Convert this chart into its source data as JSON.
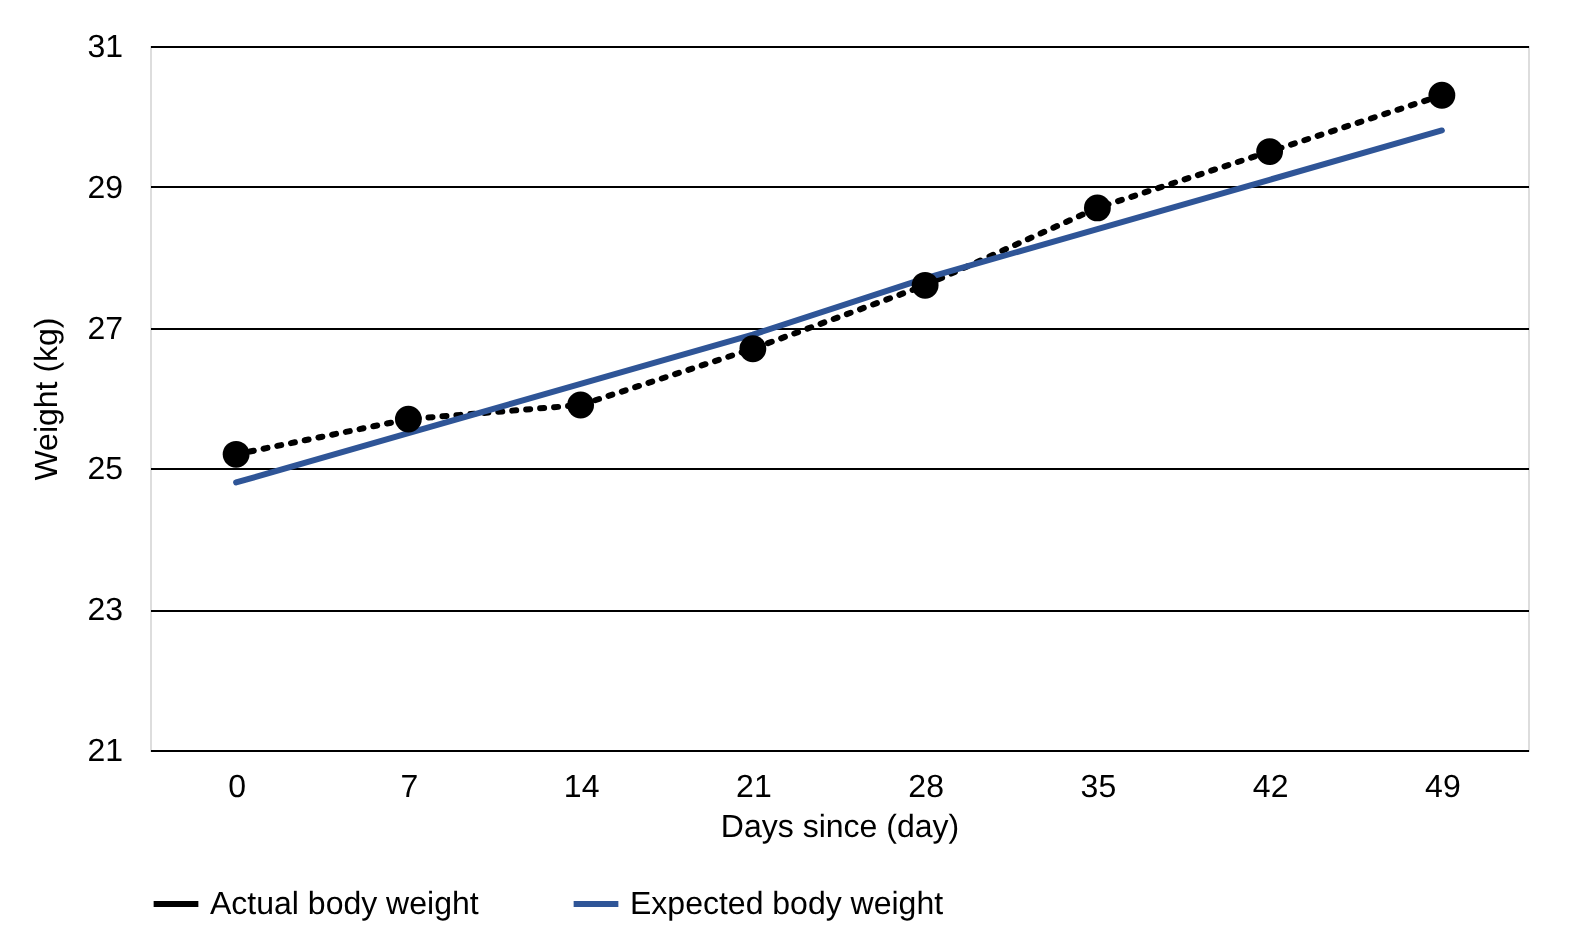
{
  "chart_data": {
    "type": "line",
    "xlabel": "Days since (day)",
    "ylabel": "Weight (kg)",
    "categories": [
      "0",
      "7",
      "14",
      "21",
      "28",
      "35",
      "42",
      "49"
    ],
    "series": [
      {
        "name": "Actual body weight",
        "color": "#000000",
        "marker": "circle",
        "line_style": "dotted",
        "values": [
          25.2,
          25.7,
          25.9,
          26.7,
          27.6,
          28.7,
          29.5,
          30.3
        ]
      },
      {
        "name": "Expected body weight",
        "color": "#2f5597",
        "marker": "none",
        "line_style": "solid",
        "values": [
          24.8,
          25.5,
          26.2,
          26.9,
          27.7,
          28.4,
          29.1,
          29.8
        ]
      }
    ],
    "ylim": [
      21,
      31
    ],
    "yticks": [
      21,
      23,
      25,
      27,
      29,
      31
    ],
    "grid": "y",
    "legend": "bottom"
  }
}
